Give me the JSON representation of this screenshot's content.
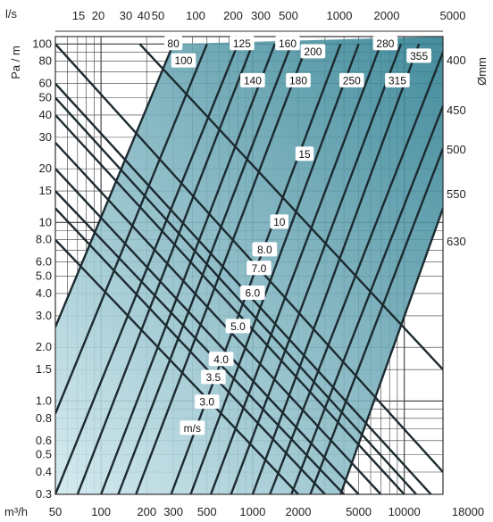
{
  "chart_data": {
    "type": "line",
    "title": "",
    "x_axis_bottom": {
      "label": "m³/h",
      "scale": "log",
      "range": [
        50,
        18000
      ],
      "ticks": [
        "50",
        "100",
        "200",
        "300",
        "500",
        "1000",
        "2000",
        "5000",
        "10000",
        "18000"
      ]
    },
    "x_axis_top": {
      "label": "l/s",
      "scale": "log",
      "ticks": [
        "15",
        "20",
        "30",
        "40",
        "50",
        "100",
        "200",
        "300",
        "500",
        "1000",
        "2000",
        "5000"
      ]
    },
    "y_axis_left": {
      "label": "Pa / m",
      "scale": "log",
      "range": [
        0.3,
        110
      ],
      "ticks": [
        "100",
        "80",
        "60",
        "50",
        "40",
        "30",
        "20",
        "15",
        "10",
        "8.0",
        "6.0",
        "5.0",
        "4.0",
        "3.0",
        "2.0",
        "1.5",
        "1.0",
        "0.8",
        "0.6",
        "0.5",
        "0.4",
        "0.3"
      ]
    },
    "grid": true,
    "diameter_unit": "Ømm",
    "velocity_unit": "m/s",
    "diameter_series": [
      {
        "d": "80",
        "points": [
          [
            50,
            2.6
          ],
          [
            300,
            100
          ]
        ]
      },
      {
        "d": "100",
        "points": [
          [
            50,
            0.85
          ],
          [
            500,
            100
          ]
        ]
      },
      {
        "d": "125",
        "points": [
          [
            50,
            0.3
          ],
          [
            800,
            100
          ]
        ]
      },
      {
        "d": "140",
        "points": [
          [
            70,
            0.3
          ],
          [
            1000,
            100
          ]
        ]
      },
      {
        "d": "160",
        "points": [
          [
            100,
            0.3
          ],
          [
            1400,
            100
          ]
        ]
      },
      {
        "d": "180",
        "points": [
          [
            130,
            0.3
          ],
          [
            1800,
            100
          ]
        ]
      },
      {
        "d": "200",
        "points": [
          [
            170,
            0.3
          ],
          [
            2300,
            100
          ]
        ]
      },
      {
        "d": "250",
        "points": [
          [
            290,
            0.3
          ],
          [
            3800,
            100
          ]
        ]
      },
      {
        "d": "280",
        "points": [
          [
            390,
            0.3
          ],
          [
            5000,
            100
          ]
        ]
      },
      {
        "d": "315",
        "points": [
          [
            530,
            0.3
          ],
          [
            7000,
            100
          ]
        ]
      },
      {
        "d": "355",
        "points": [
          [
            720,
            0.3
          ],
          [
            9500,
            100
          ]
        ]
      },
      {
        "d": "400",
        "points": [
          [
            1000,
            0.3
          ],
          [
            12500,
            100
          ]
        ]
      },
      {
        "d": "450",
        "points": [
          [
            1300,
            0.3
          ],
          [
            18000,
            90
          ]
        ]
      },
      {
        "d": "500",
        "points": [
          [
            1800,
            0.3
          ],
          [
            18000,
            45
          ]
        ]
      },
      {
        "d": "550",
        "points": [
          [
            2400,
            0.3
          ],
          [
            18000,
            26
          ]
        ]
      },
      {
        "d": "630",
        "points": [
          [
            3800,
            0.3
          ],
          [
            18000,
            12
          ]
        ]
      }
    ],
    "velocity_series": [
      {
        "v": "m/s",
        "points": [
          [
            50,
            8
          ],
          [
            2000,
            0.3
          ]
        ]
      },
      {
        "v": "3.0",
        "points": [
          [
            50,
            12
          ],
          [
            3000,
            0.3
          ]
        ]
      },
      {
        "v": "3.5",
        "points": [
          [
            50,
            15
          ],
          [
            4000,
            0.3
          ]
        ]
      },
      {
        "v": "4.0",
        "points": [
          [
            50,
            20
          ],
          [
            5000,
            0.3
          ]
        ]
      },
      {
        "v": "5.0",
        "points": [
          [
            50,
            28
          ],
          [
            7000,
            0.3
          ]
        ]
      },
      {
        "v": "6.0",
        "points": [
          [
            50,
            40
          ],
          [
            10000,
            0.3
          ]
        ]
      },
      {
        "v": "7.0",
        "points": [
          [
            50,
            50
          ],
          [
            12000,
            0.3
          ]
        ]
      },
      {
        "v": "8.0",
        "points": [
          [
            50,
            60
          ],
          [
            15000,
            0.3
          ]
        ]
      },
      {
        "v": "10",
        "points": [
          [
            50,
            100
          ],
          [
            18000,
            0.4
          ]
        ]
      },
      {
        "v": "15",
        "points": [
          [
            180,
            100
          ],
          [
            18000,
            1.5
          ]
        ]
      }
    ],
    "diameter_labels": [
      {
        "text": "80",
        "x": 300,
        "y": 100
      },
      {
        "text": "100",
        "x": 350,
        "y": 80
      },
      {
        "text": "125",
        "x": 850,
        "y": 100
      },
      {
        "text": "140",
        "x": 1000,
        "y": 62
      },
      {
        "text": "160",
        "x": 1700,
        "y": 100
      },
      {
        "text": "180",
        "x": 2000,
        "y": 62
      },
      {
        "text": "200",
        "x": 2500,
        "y": 90
      },
      {
        "text": "250",
        "x": 4500,
        "y": 62
      },
      {
        "text": "280",
        "x": 7500,
        "y": 100
      },
      {
        "text": "315",
        "x": 9000,
        "y": 62
      },
      {
        "text": "355",
        "x": 12500,
        "y": 85
      }
    ],
    "right_labels": [
      "400",
      "450",
      "500",
      "550",
      "630"
    ],
    "velocity_labels": [
      {
        "text": "15",
        "x": 2200,
        "y": 24
      },
      {
        "text": "10",
        "x": 1500,
        "y": 10
      },
      {
        "text": "8.0",
        "x": 1200,
        "y": 7.0
      },
      {
        "text": "7.0",
        "x": 1100,
        "y": 5.5
      },
      {
        "text": "6.0",
        "x": 1000,
        "y": 4.0
      },
      {
        "text": "5.0",
        "x": 800,
        "y": 2.6
      },
      {
        "text": "4.0",
        "x": 620,
        "y": 1.7
      },
      {
        "text": "3.5",
        "x": 550,
        "y": 1.35
      },
      {
        "text": "3.0",
        "x": 500,
        "y": 0.98
      },
      {
        "text": "m/s",
        "x": 400,
        "y": 0.7
      }
    ],
    "colors": {
      "fill_dark": "#2b7d8f",
      "fill_light": "#cfe8ee",
      "line": "#1c2a30",
      "grid": "#3a3a3a",
      "axis_blue": "#2a7db8"
    }
  }
}
